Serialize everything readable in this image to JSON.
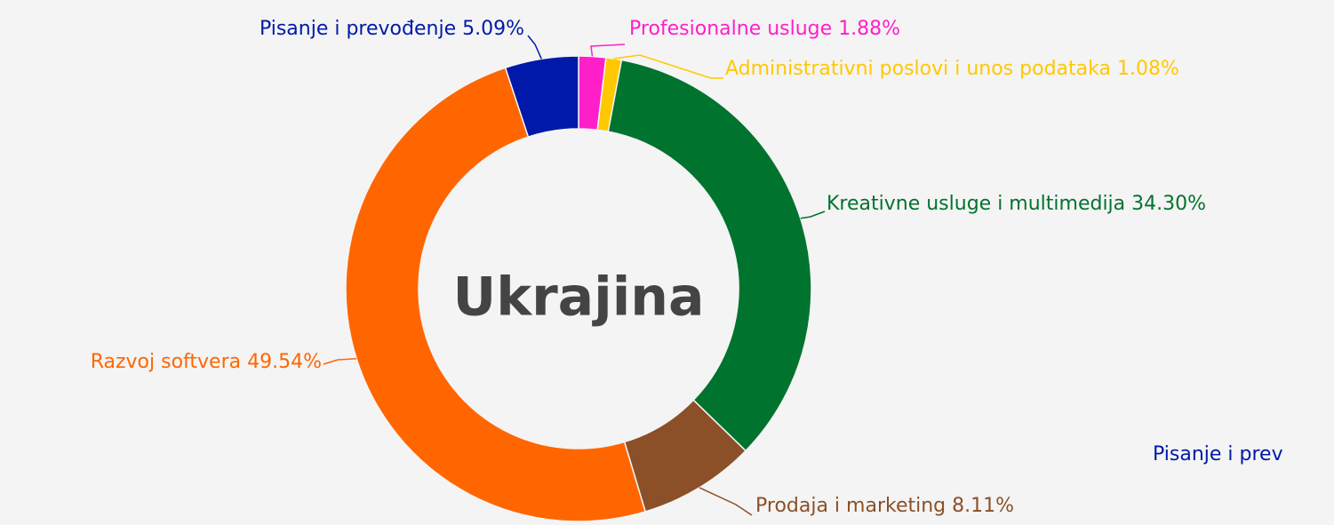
{
  "chart_data": {
    "type": "donut",
    "title": "Ukrajina",
    "categories": [
      "Profesionalne usluge",
      "Administrativni poslovi i unos podataka",
      "Kreativne usluge i multimedija",
      "Prodaja i marketing",
      "Razvoj softvera",
      "Pisanje i prevođenje"
    ],
    "values": [
      1.88,
      1.08,
      34.3,
      8.11,
      49.54,
      5.09
    ],
    "value_labels": [
      "1.88%",
      "1.08%",
      "34.30%",
      "8.11%",
      "49.54%",
      "5.09%"
    ],
    "colors": [
      "#ff1fc8",
      "#ffc800",
      "#00732e",
      "#8b5028",
      "#ff6600",
      "#0019a8"
    ],
    "overflow_label": "Pisanje i prev"
  }
}
